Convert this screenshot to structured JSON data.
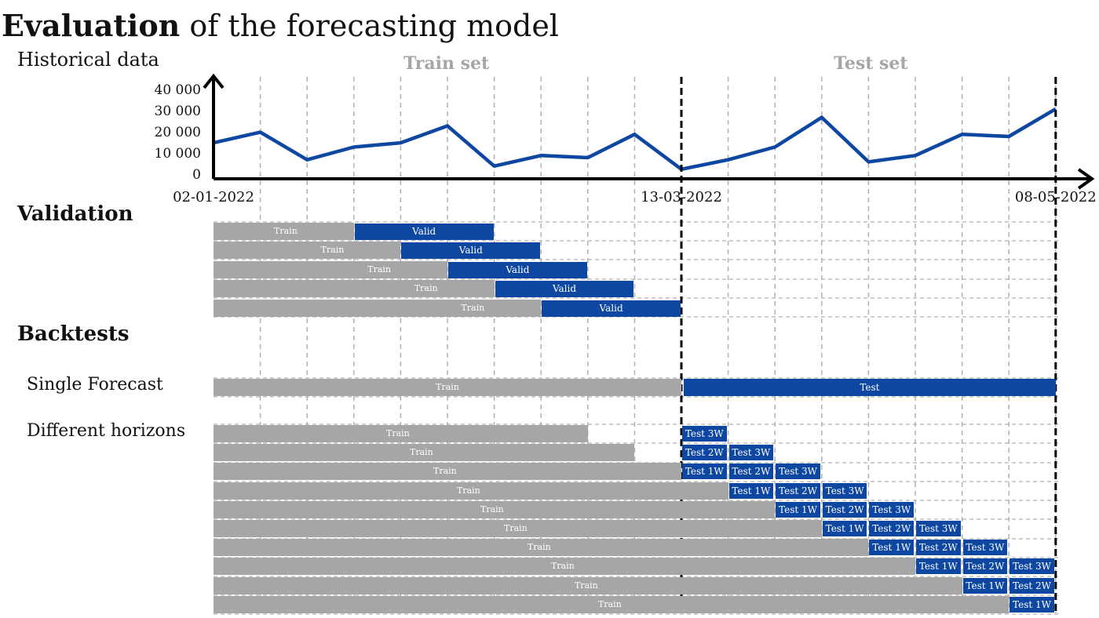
{
  "title": {
    "bold": "Evaluation",
    "rest": " of the forecasting model"
  },
  "historical_label": "Historical data",
  "train_set_label": "Train set",
  "test_set_label": "Test set",
  "validation_label": "Validation",
  "backtests_label": "Backtests",
  "single_forecast_label": "Single Forecast",
  "different_horizons_label": "Different horizons",
  "colors": {
    "accent": "#0d47a1",
    "train": "#a6a6a6",
    "label_gray": "#a6a6a6"
  },
  "chart_data": {
    "type": "line",
    "title": "",
    "y_ticks": [
      "40 000",
      "30 000",
      "20 000",
      "10 000",
      "0"
    ],
    "x_ticks": [
      "02-01-2022",
      "13-03-2022",
      "08-05-2022"
    ],
    "series": [
      {
        "values": [
          17000,
          22000,
          9000,
          15000,
          17000,
          25000,
          6000,
          11000,
          10000,
          21000,
          4500,
          9000,
          15000,
          29000,
          8000,
          11000,
          21000,
          20000,
          33000
        ]
      }
    ]
  },
  "validation_rows": [
    {
      "train": "Train",
      "valid": "Valid"
    },
    {
      "train": "Train",
      "valid": "Valid"
    },
    {
      "train": "Train",
      "valid": "Valid"
    },
    {
      "train": "Train",
      "valid": "Valid"
    },
    {
      "train": "Train",
      "valid": "Valid"
    }
  ],
  "single_forecast": {
    "train": "Train",
    "test": "Test"
  },
  "horizon_rows": [
    {
      "train": "Train",
      "tests": [
        "Test 3W"
      ]
    },
    {
      "train": "Train",
      "tests": [
        "Test 2W",
        "Test 3W"
      ]
    },
    {
      "train": "Train",
      "tests": [
        "Test 1W",
        "Test 2W",
        "Test 3W"
      ]
    },
    {
      "train": "Train",
      "tests": [
        "Test 1W",
        "Test 2W",
        "Test 3W"
      ]
    },
    {
      "train": "Train",
      "tests": [
        "Test 1W",
        "Test 2W",
        "Test 3W"
      ]
    },
    {
      "train": "Train",
      "tests": [
        "Test 1W",
        "Test 2W",
        "Test 3W"
      ]
    },
    {
      "train": "Train",
      "tests": [
        "Test 1W",
        "Test 2W",
        "Test 3W"
      ]
    },
    {
      "train": "Train",
      "tests": [
        "Test 1W",
        "Test 2W",
        "Test 3W"
      ]
    },
    {
      "train": "Train",
      "tests": [
        "Test 1W",
        "Test 2W"
      ]
    },
    {
      "train": "Train",
      "tests": [
        "Test 1W"
      ]
    }
  ]
}
